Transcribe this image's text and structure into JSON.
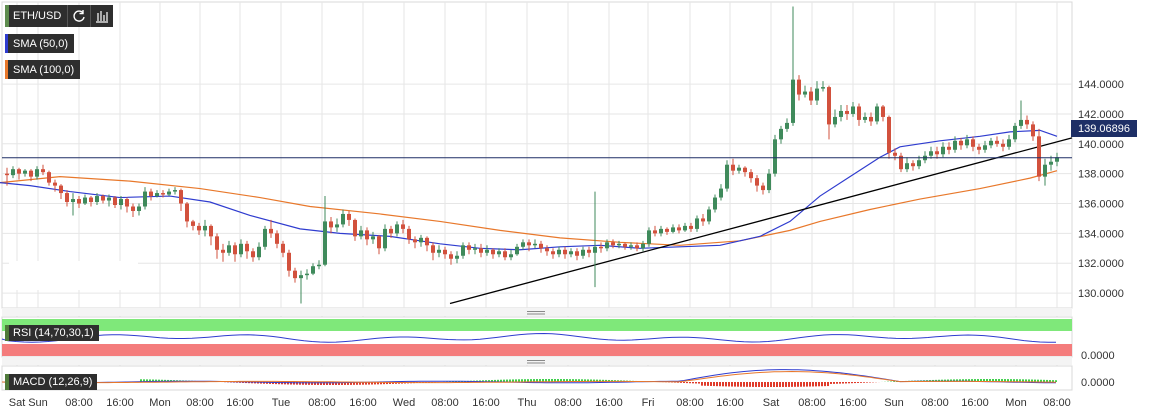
{
  "toolbar": {
    "symbol": "ETH/USD",
    "refresh_icon": "refresh-icon",
    "chart_type_icon": "bar-chart-icon"
  },
  "indicators": {
    "sma50": {
      "label": "SMA (50,0)",
      "color": "#2f3ccf"
    },
    "sma100": {
      "label": "SMA (100,0)",
      "color": "#e8782b"
    },
    "rsi": {
      "label": "RSI (14,70,30,1)"
    },
    "macd": {
      "label": "MACD (12,26,9)"
    }
  },
  "price_tag": "139.06896",
  "colors": {
    "up": "#3f8a5b",
    "down": "#d2513d",
    "trend": "#000000",
    "grid": "#e6e6e6"
  },
  "chart_data": {
    "type": "candlestick",
    "ylim": [
      129,
      149.5
    ],
    "yticks": [
      "130.0000",
      "132.0000",
      "134.0000",
      "136.0000",
      "138.0000",
      "140.0000",
      "142.0000",
      "144.0000"
    ],
    "rsi_ticks": [
      "0.0000"
    ],
    "macd_ticks": [
      "0.0000"
    ],
    "x_labels": [
      "Sat",
      "Sun",
      "08:00",
      "16:00",
      "Mon",
      "08:00",
      "16:00",
      "Tue",
      "08:00",
      "16:00",
      "Wed",
      "08:00",
      "16:00",
      "Thu",
      "08:00",
      "16:00",
      "Fri",
      "08:00",
      "16:00",
      "Sat",
      "08:00",
      "16:00",
      "Sun",
      "08:00",
      "16:00",
      "Mon",
      "08:00"
    ],
    "current_price": 139.069,
    "sma50": [
      [
        0,
        137.4
      ],
      [
        30,
        137.2
      ],
      [
        70,
        136.8
      ],
      [
        120,
        136.4
      ],
      [
        170,
        136.5
      ],
      [
        210,
        136.1
      ],
      [
        250,
        135.2
      ],
      [
        300,
        134.3
      ],
      [
        340,
        134.0
      ],
      [
        390,
        133.8
      ],
      [
        440,
        133.3
      ],
      [
        480,
        133.0
      ],
      [
        520,
        132.9
      ],
      [
        560,
        133.1
      ],
      [
        600,
        133.2
      ],
      [
        640,
        133.0
      ],
      [
        680,
        133.1
      ],
      [
        720,
        133.2
      ],
      [
        760,
        133.8
      ],
      [
        790,
        134.8
      ],
      [
        820,
        136.5
      ],
      [
        850,
        137.8
      ],
      [
        880,
        139.1
      ],
      [
        900,
        139.8
      ],
      [
        940,
        140.2
      ],
      [
        980,
        140.5
      ],
      [
        1010,
        140.8
      ],
      [
        1040,
        140.9
      ],
      [
        1057,
        140.5
      ]
    ],
    "sma100": [
      [
        0,
        137.4
      ],
      [
        60,
        137.8
      ],
      [
        130,
        137.5
      ],
      [
        200,
        137.0
      ],
      [
        260,
        136.4
      ],
      [
        310,
        135.8
      ],
      [
        380,
        135.3
      ],
      [
        440,
        134.8
      ],
      [
        500,
        134.2
      ],
      [
        560,
        133.7
      ],
      [
        620,
        133.4
      ],
      [
        680,
        133.2
      ],
      [
        740,
        133.5
      ],
      [
        790,
        134.2
      ],
      [
        820,
        134.8
      ],
      [
        870,
        135.6
      ],
      [
        920,
        136.3
      ],
      [
        980,
        137.0
      ],
      [
        1030,
        137.7
      ],
      [
        1057,
        138.2
      ]
    ],
    "trendline": [
      [
        450,
        129.3
      ],
      [
        1072,
        140.4
      ]
    ],
    "candles": [
      [
        7,
        138.0,
        137.9,
        138.4,
        137.2
      ],
      [
        13,
        137.9,
        138.3,
        138.5,
        137.7
      ],
      [
        19,
        138.3,
        138.0,
        138.4,
        137.6
      ],
      [
        25,
        138.0,
        138.2,
        138.3,
        137.8
      ],
      [
        31,
        138.2,
        137.8,
        138.3,
        137.5
      ],
      [
        37,
        137.8,
        138.3,
        138.5,
        137.6
      ],
      [
        43,
        138.3,
        138.1,
        138.6,
        137.9
      ],
      [
        49,
        138.1,
        137.4,
        138.2,
        137.2
      ],
      [
        55,
        137.4,
        137.2,
        137.6,
        136.8
      ],
      [
        61,
        137.2,
        136.7,
        137.3,
        136.3
      ],
      [
        67,
        136.7,
        136.1,
        136.9,
        135.8
      ],
      [
        73,
        136.1,
        136.3,
        136.7,
        135.2
      ],
      [
        79,
        136.3,
        136.0,
        136.5,
        135.7
      ],
      [
        85,
        136.0,
        136.4,
        136.6,
        135.9
      ],
      [
        91,
        136.4,
        136.1,
        136.5,
        135.8
      ],
      [
        97,
        136.1,
        136.5,
        136.7,
        135.9
      ],
      [
        103,
        136.5,
        136.2,
        136.6,
        136.0
      ],
      [
        109,
        136.2,
        136.4,
        136.6,
        135.8
      ],
      [
        115,
        136.4,
        135.9,
        136.5,
        135.7
      ],
      [
        121,
        135.9,
        136.3,
        136.5,
        135.6
      ],
      [
        127,
        136.3,
        135.8,
        136.4,
        135.4
      ],
      [
        133,
        135.8,
        135.5,
        136.0,
        135.1
      ],
      [
        139,
        135.5,
        135.8,
        136.0,
        135.2
      ],
      [
        145,
        135.8,
        136.8,
        137.1,
        135.6
      ],
      [
        151,
        136.8,
        136.5,
        137.0,
        136.2
      ],
      [
        157,
        136.5,
        136.7,
        136.9,
        136.4
      ],
      [
        163,
        136.7,
        136.6,
        136.9,
        136.4
      ],
      [
        169,
        136.6,
        136.8,
        137.0,
        136.5
      ],
      [
        175,
        136.8,
        136.9,
        137.1,
        136.6
      ],
      [
        181,
        136.9,
        136.0,
        137.0,
        135.5
      ],
      [
        187,
        136.0,
        134.8,
        136.1,
        134.4
      ],
      [
        193,
        134.8,
        134.5,
        134.9,
        134.2
      ],
      [
        199,
        134.5,
        134.2,
        134.7,
        133.9
      ],
      [
        205,
        134.2,
        134.5,
        134.9,
        133.8
      ],
      [
        211,
        134.5,
        133.8,
        134.6,
        133.2
      ],
      [
        217,
        133.8,
        132.9,
        134.0,
        132.3
      ],
      [
        223,
        132.9,
        132.7,
        133.3,
        132.1
      ],
      [
        229,
        132.7,
        133.2,
        133.5,
        132.5
      ],
      [
        235,
        133.2,
        132.6,
        133.4,
        132.1
      ],
      [
        241,
        132.6,
        133.3,
        133.6,
        132.4
      ],
      [
        247,
        133.3,
        132.8,
        133.5,
        132.3
      ],
      [
        253,
        132.8,
        132.4,
        133.0,
        132.1
      ],
      [
        259,
        132.4,
        133.1,
        133.4,
        132.2
      ],
      [
        265,
        133.1,
        134.3,
        134.5,
        132.9
      ],
      [
        271,
        134.3,
        134.0,
        134.9,
        133.7
      ],
      [
        277,
        134.0,
        133.3,
        134.2,
        133.0
      ],
      [
        283,
        133.3,
        132.7,
        133.5,
        132.4
      ],
      [
        289,
        132.7,
        131.5,
        132.9,
        131.1
      ],
      [
        295,
        131.5,
        131.0,
        131.7,
        130.7
      ],
      [
        301,
        131.0,
        131.2,
        131.5,
        129.3
      ],
      [
        307,
        131.2,
        131.3,
        131.6,
        130.9
      ],
      [
        313,
        131.3,
        131.8,
        132.0,
        131.2
      ],
      [
        319,
        131.8,
        131.9,
        132.2,
        131.6
      ],
      [
        325,
        131.9,
        134.8,
        136.5,
        131.8
      ],
      [
        331,
        134.8,
        134.4,
        135.1,
        134.0
      ],
      [
        337,
        134.4,
        134.6,
        135.0,
        134.1
      ],
      [
        343,
        134.6,
        135.3,
        135.6,
        134.4
      ],
      [
        349,
        135.3,
        134.9,
        135.5,
        134.5
      ],
      [
        355,
        134.9,
        133.8,
        135.0,
        133.5
      ],
      [
        361,
        133.8,
        134.2,
        134.5,
        133.6
      ],
      [
        367,
        134.2,
        133.6,
        134.4,
        133.2
      ],
      [
        373,
        133.6,
        133.8,
        134.1,
        133.3
      ],
      [
        379,
        133.8,
        133.0,
        133.9,
        132.6
      ],
      [
        385,
        133.0,
        134.3,
        134.6,
        132.8
      ],
      [
        391,
        134.3,
        134.0,
        134.5,
        133.7
      ],
      [
        397,
        134.0,
        134.6,
        134.8,
        133.8
      ],
      [
        403,
        134.6,
        134.3,
        134.9,
        134.0
      ],
      [
        409,
        134.3,
        133.6,
        134.5,
        133.3
      ],
      [
        415,
        133.6,
        133.4,
        133.8,
        133.0
      ],
      [
        421,
        133.4,
        133.7,
        133.9,
        133.1
      ],
      [
        427,
        133.7,
        133.2,
        133.8,
        132.8
      ],
      [
        433,
        133.2,
        132.7,
        133.4,
        132.2
      ],
      [
        439,
        132.7,
        132.9,
        133.2,
        132.4
      ],
      [
        445,
        132.9,
        132.6,
        133.1,
        132.3
      ],
      [
        451,
        132.6,
        132.3,
        132.8,
        131.9
      ],
      [
        457,
        132.3,
        132.5,
        132.8,
        132.0
      ],
      [
        463,
        132.5,
        133.2,
        133.4,
        132.3
      ],
      [
        469,
        133.2,
        132.9,
        133.4,
        132.6
      ],
      [
        475,
        132.9,
        133.0,
        133.3,
        132.6
      ],
      [
        481,
        133.0,
        132.7,
        133.3,
        132.4
      ],
      [
        487,
        132.7,
        132.9,
        133.2,
        132.5
      ],
      [
        493,
        132.9,
        132.6,
        133.0,
        132.3
      ],
      [
        499,
        132.6,
        132.8,
        133.0,
        132.4
      ],
      [
        505,
        132.8,
        132.4,
        133.0,
        132.2
      ],
      [
        511,
        132.4,
        132.6,
        132.9,
        132.2
      ],
      [
        517,
        132.6,
        133.1,
        133.3,
        132.5
      ],
      [
        523,
        133.1,
        133.4,
        133.6,
        132.9
      ],
      [
        529,
        133.4,
        133.2,
        133.6,
        132.8
      ],
      [
        535,
        133.2,
        133.3,
        133.6,
        133.0
      ],
      [
        541,
        133.3,
        133.0,
        133.5,
        132.7
      ],
      [
        547,
        133.0,
        132.8,
        133.2,
        132.5
      ],
      [
        553,
        132.8,
        132.6,
        133.0,
        132.3
      ],
      [
        559,
        132.6,
        132.9,
        133.1,
        132.4
      ],
      [
        565,
        132.9,
        132.6,
        133.1,
        132.3
      ],
      [
        571,
        132.6,
        132.8,
        133.0,
        132.4
      ],
      [
        577,
        132.8,
        132.5,
        133.0,
        132.2
      ],
      [
        583,
        132.5,
        132.9,
        133.1,
        132.3
      ],
      [
        589,
        132.9,
        132.7,
        133.1,
        132.4
      ],
      [
        595,
        132.7,
        133.1,
        136.8,
        130.4
      ],
      [
        601,
        133.1,
        133.0,
        133.4,
        132.7
      ],
      [
        607,
        133.0,
        133.4,
        133.6,
        132.8
      ],
      [
        613,
        133.4,
        133.2,
        133.6,
        133.0
      ],
      [
        619,
        133.2,
        133.3,
        133.5,
        133.0
      ],
      [
        625,
        133.3,
        133.1,
        133.4,
        132.9
      ],
      [
        631,
        133.1,
        133.2,
        133.4,
        132.9
      ],
      [
        637,
        133.2,
        133.0,
        133.4,
        132.8
      ],
      [
        643,
        133.0,
        133.3,
        133.5,
        132.8
      ],
      [
        649,
        133.3,
        134.2,
        134.4,
        133.1
      ],
      [
        655,
        134.2,
        134.0,
        134.5,
        133.8
      ],
      [
        661,
        134.0,
        134.3,
        134.5,
        133.8
      ],
      [
        667,
        134.3,
        134.1,
        134.4,
        133.9
      ],
      [
        673,
        134.1,
        134.4,
        134.6,
        134.0
      ],
      [
        679,
        134.4,
        134.2,
        134.6,
        134.0
      ],
      [
        685,
        134.2,
        134.5,
        134.7,
        134.1
      ],
      [
        691,
        134.5,
        134.3,
        134.7,
        134.1
      ],
      [
        697,
        134.3,
        135.0,
        135.2,
        134.1
      ],
      [
        703,
        135.0,
        134.8,
        135.3,
        134.5
      ],
      [
        709,
        134.8,
        135.6,
        135.8,
        134.6
      ],
      [
        715,
        135.6,
        136.4,
        136.6,
        135.4
      ],
      [
        721,
        136.4,
        137.0,
        137.3,
        136.2
      ],
      [
        727,
        137.0,
        138.6,
        138.9,
        136.8
      ],
      [
        733,
        138.6,
        138.2,
        139.0,
        137.9
      ],
      [
        739,
        138.2,
        138.4,
        138.6,
        138.0
      ],
      [
        745,
        138.4,
        138.1,
        138.5,
        137.8
      ],
      [
        751,
        138.1,
        137.7,
        138.3,
        137.4
      ],
      [
        757,
        137.7,
        137.2,
        137.9,
        136.8
      ],
      [
        763,
        137.2,
        136.9,
        137.4,
        136.6
      ],
      [
        769,
        136.9,
        138.0,
        138.3,
        136.7
      ],
      [
        775,
        138.0,
        140.3,
        140.6,
        137.8
      ],
      [
        781,
        140.3,
        141.0,
        141.2,
        140.0
      ],
      [
        787,
        141.0,
        141.4,
        141.7,
        140.8
      ],
      [
        793,
        141.4,
        144.3,
        149.2,
        141.2
      ],
      [
        799,
        144.3,
        143.3,
        144.6,
        142.9
      ],
      [
        805,
        143.3,
        143.5,
        143.9,
        143.1
      ],
      [
        811,
        143.5,
        142.9,
        143.8,
        142.6
      ],
      [
        817,
        142.9,
        143.7,
        144.2,
        142.6
      ],
      [
        823,
        143.7,
        143.8,
        144.2,
        143.5
      ],
      [
        829,
        143.8,
        141.3,
        143.9,
        140.3
      ],
      [
        835,
        141.3,
        141.8,
        142.3,
        141.1
      ],
      [
        841,
        141.8,
        142.2,
        142.6,
        141.5
      ],
      [
        847,
        142.2,
        142.0,
        142.6,
        141.6
      ],
      [
        853,
        142.0,
        142.5,
        142.8,
        141.8
      ],
      [
        859,
        142.5,
        141.6,
        142.7,
        141.2
      ],
      [
        865,
        141.6,
        141.8,
        142.1,
        141.4
      ],
      [
        871,
        141.8,
        141.5,
        142.1,
        141.2
      ],
      [
        877,
        141.5,
        142.5,
        142.7,
        141.3
      ],
      [
        883,
        142.5,
        141.8,
        142.6,
        141.5
      ],
      [
        889,
        141.8,
        139.4,
        141.9,
        139.0
      ],
      [
        895,
        139.4,
        139.2,
        139.7,
        138.9
      ],
      [
        901,
        139.2,
        138.3,
        139.4,
        138.1
      ],
      [
        907,
        138.3,
        138.7,
        139.1,
        138.1
      ],
      [
        913,
        138.7,
        138.5,
        138.9,
        138.2
      ],
      [
        919,
        138.5,
        138.9,
        139.2,
        138.3
      ],
      [
        925,
        138.9,
        139.2,
        139.5,
        138.7
      ],
      [
        931,
        139.2,
        139.5,
        139.8,
        139.0
      ],
      [
        937,
        139.5,
        139.3,
        139.8,
        139.0
      ],
      [
        943,
        139.3,
        139.8,
        140.1,
        139.1
      ],
      [
        949,
        139.8,
        139.6,
        140.1,
        139.3
      ],
      [
        955,
        139.6,
        140.2,
        140.5,
        139.4
      ],
      [
        961,
        140.2,
        139.9,
        140.4,
        139.6
      ],
      [
        967,
        139.9,
        140.3,
        140.6,
        139.7
      ],
      [
        973,
        140.3,
        139.8,
        140.5,
        139.5
      ],
      [
        979,
        139.8,
        139.6,
        140.0,
        139.3
      ],
      [
        985,
        139.6,
        139.9,
        140.2,
        139.4
      ],
      [
        991,
        139.9,
        140.2,
        140.4,
        139.7
      ],
      [
        997,
        140.2,
        140.0,
        140.5,
        139.8
      ],
      [
        1003,
        140.0,
        139.8,
        140.3,
        139.5
      ],
      [
        1009,
        139.8,
        140.3,
        140.6,
        139.6
      ],
      [
        1015,
        140.3,
        141.2,
        141.4,
        140.1
      ],
      [
        1021,
        141.2,
        141.6,
        142.9,
        141.0
      ],
      [
        1027,
        141.6,
        141.3,
        141.9,
        141.0
      ],
      [
        1033,
        141.3,
        140.5,
        141.5,
        140.2
      ],
      [
        1039,
        140.5,
        137.8,
        141.0,
        137.5
      ],
      [
        1045,
        137.8,
        138.6,
        139.0,
        137.2
      ],
      [
        1051,
        138.6,
        138.8,
        139.2,
        138.2
      ],
      [
        1057,
        138.8,
        139.1,
        139.4,
        138.5
      ]
    ]
  }
}
